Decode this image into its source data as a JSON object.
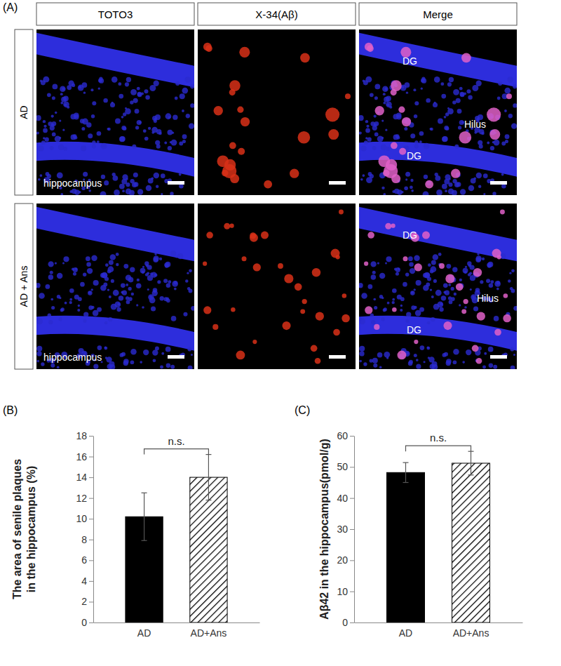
{
  "panel_a": {
    "label": "(A)",
    "columns": [
      "TOTO3",
      "X-34(Aβ)",
      "Merge"
    ],
    "rows": [
      {
        "label": "AD",
        "region": "hippocampus",
        "merge_labels": [
          "DG",
          "Hilus",
          "DG"
        ]
      },
      {
        "label": "AD + Ans",
        "region": "hippocampus",
        "merge_labels": [
          "DG",
          "Hilus",
          "DG"
        ]
      }
    ]
  },
  "chart_data": [
    {
      "type": "bar",
      "panel_label": "(B)",
      "ylabel": [
        "The area of senile plaques",
        "in the hippocampus (%)"
      ],
      "categories": [
        "AD",
        "AD+Ans"
      ],
      "values": [
        10.2,
        14.0
      ],
      "errors": [
        2.3,
        2.2
      ],
      "colors": [
        "#000000",
        "#000000"
      ],
      "ylim": [
        0,
        18
      ],
      "yticks": [
        0,
        2,
        4,
        6,
        8,
        10,
        12,
        14,
        16,
        18
      ],
      "annotations": [
        {
          "text": "n.s."
        }
      ]
    },
    {
      "type": "bar",
      "panel_label": "(C)",
      "ylabel": [
        "Aβ42 in the hippocampus(pmol/g)"
      ],
      "categories": [
        "AD",
        "AD+Ans"
      ],
      "values": [
        48.2,
        51.2
      ],
      "errors": [
        3.2,
        3.8
      ],
      "colors": [
        "#000000",
        "#000000"
      ],
      "ylim": [
        0,
        60
      ],
      "yticks": [
        0,
        10,
        20,
        30,
        40,
        50,
        60
      ],
      "annotations": [
        {
          "text": "n.s."
        }
      ]
    }
  ]
}
